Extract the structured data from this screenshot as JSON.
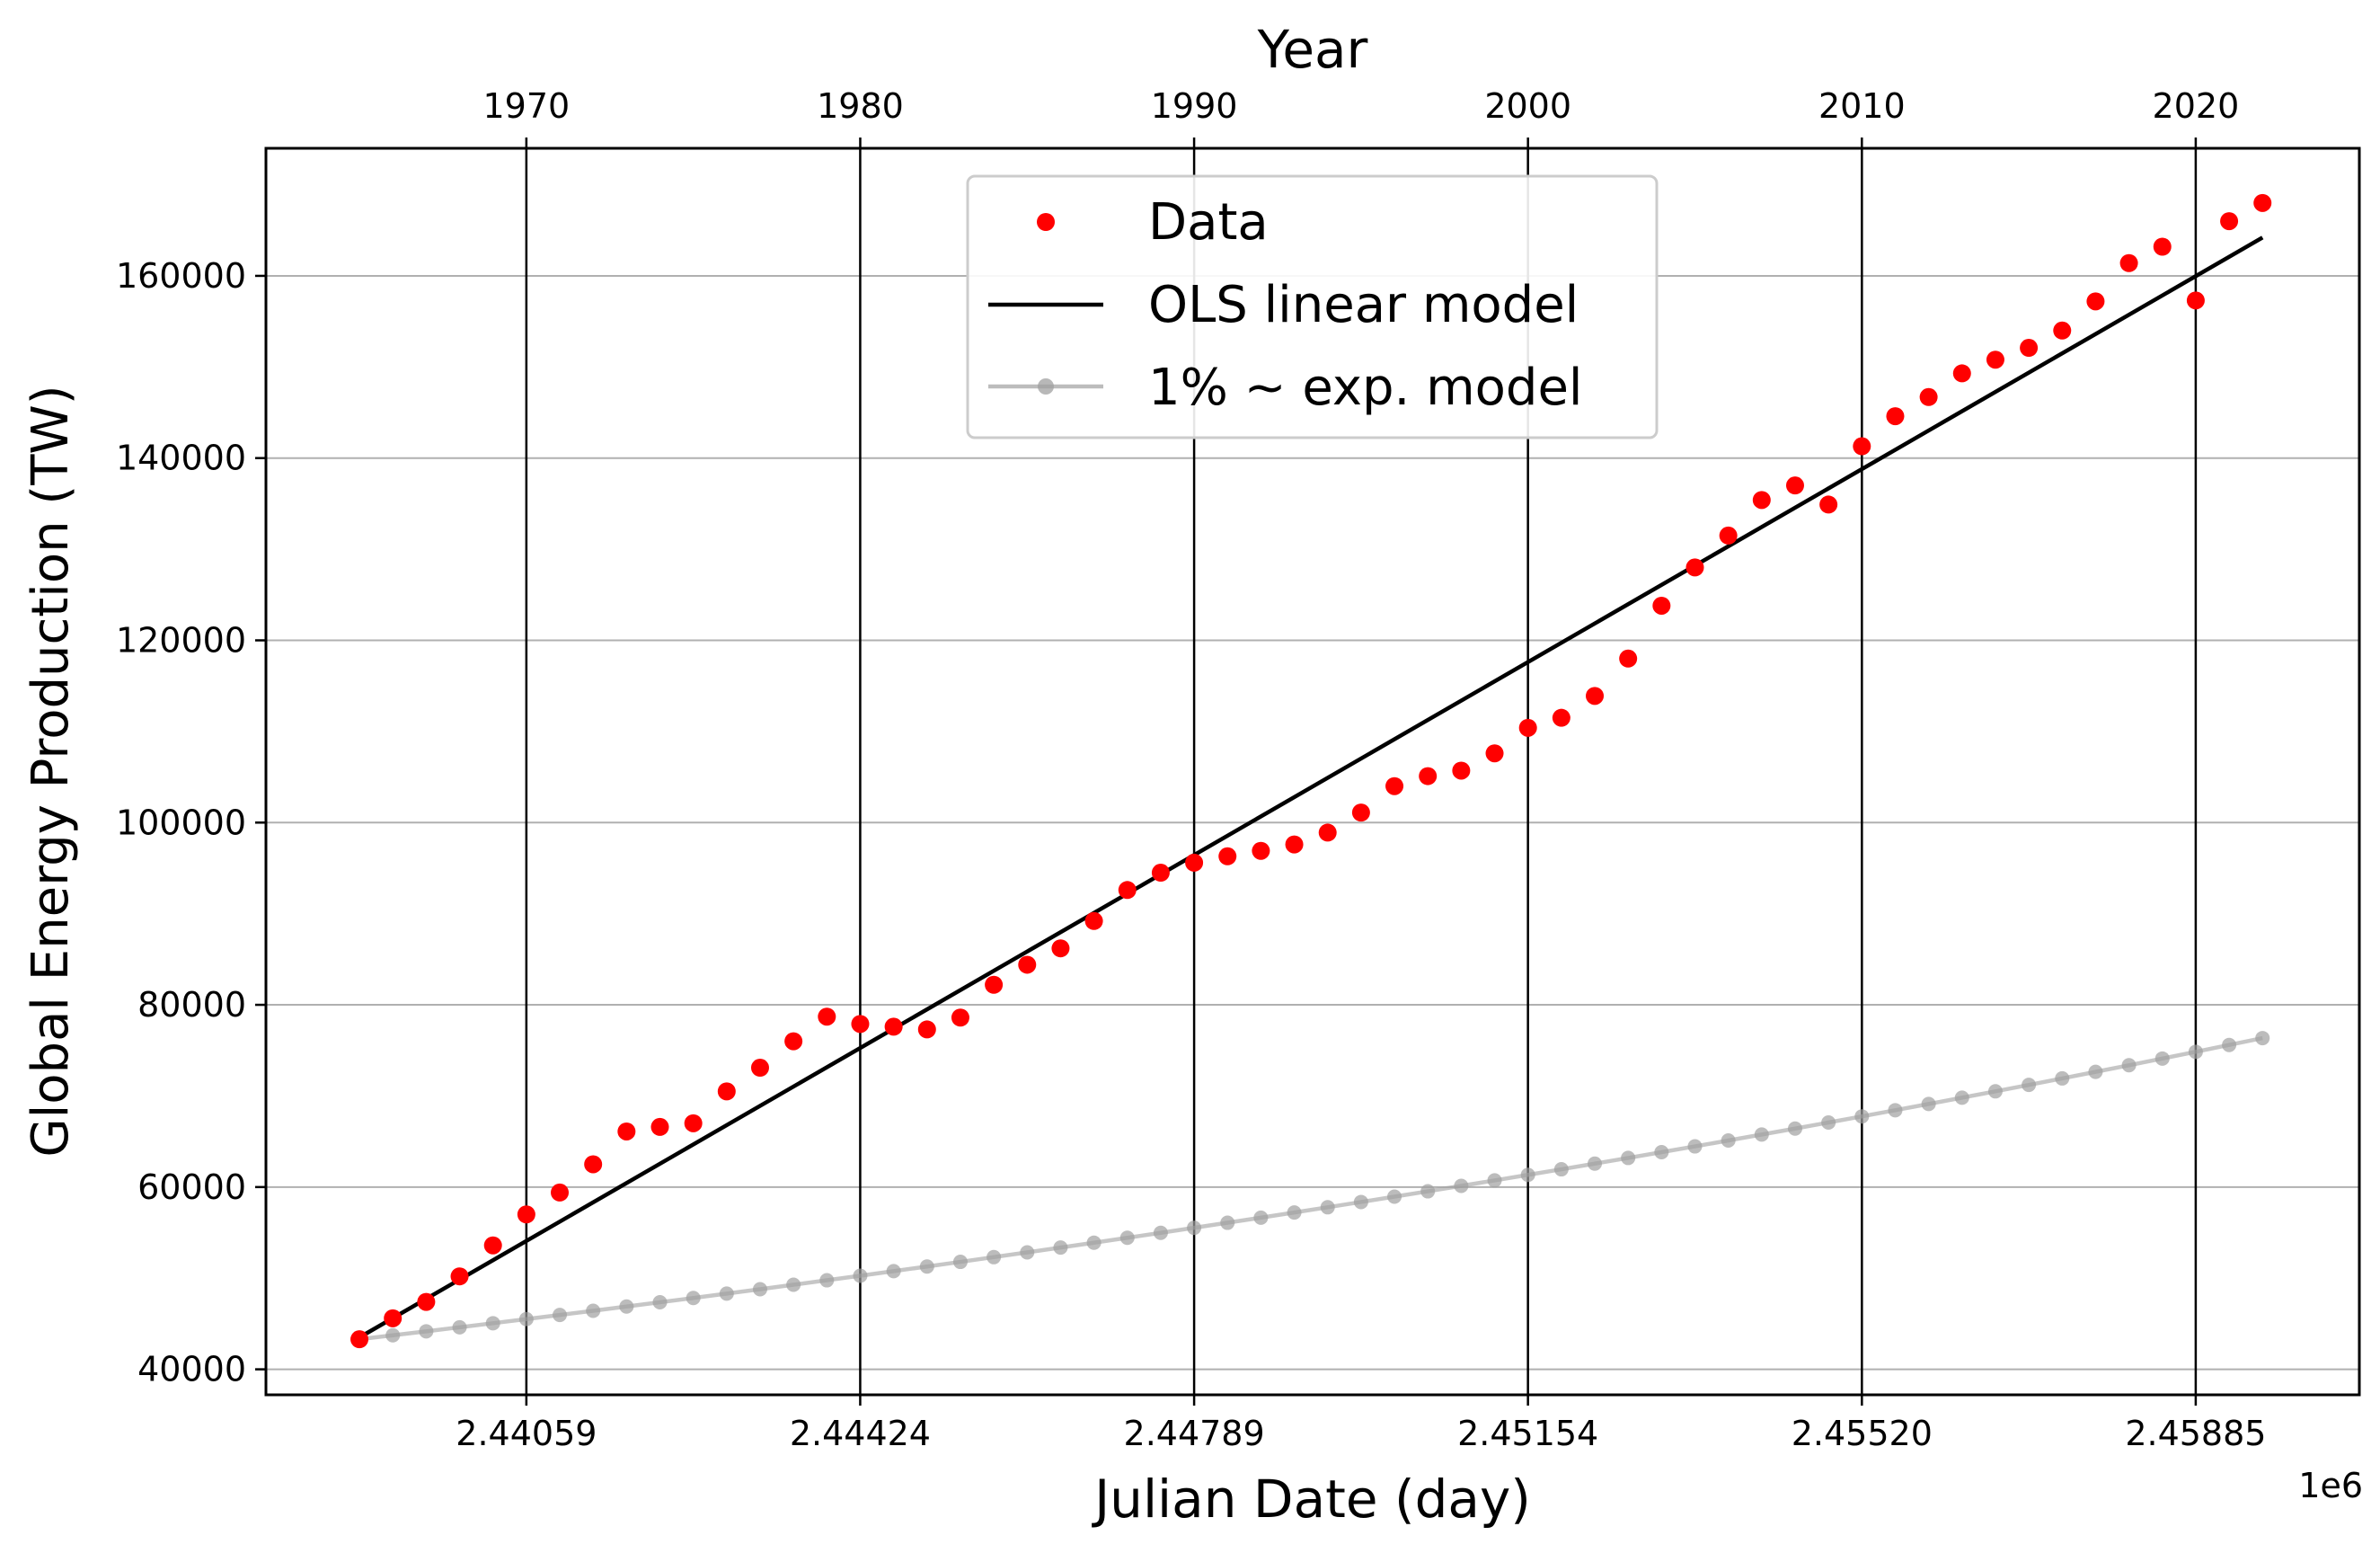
{
  "chart_data": {
    "type": "scatter",
    "title": "",
    "xlabel": "Julian Date (day)",
    "ylabel": "Global Energy Production (TW)",
    "x_offset_label": "1e6",
    "secondary_x": {
      "label": "Year",
      "ticks": [
        {
          "value": 1970,
          "label": "1970"
        },
        {
          "value": 1980,
          "label": "1980"
        },
        {
          "value": 1990,
          "label": "1990"
        },
        {
          "value": 2000,
          "label": "2000"
        },
        {
          "value": 2010,
          "label": "2010"
        },
        {
          "value": 2020,
          "label": "2020"
        }
      ]
    },
    "x_ticks": [
      {
        "value": 2440587.5,
        "label": "2.44059"
      },
      {
        "value": 2444239.5,
        "label": "2.44424"
      },
      {
        "value": 2447892.5,
        "label": "2.44789"
      },
      {
        "value": 2451544.5,
        "label": "2.45154"
      },
      {
        "value": 2455197.5,
        "label": "2.45520"
      },
      {
        "value": 2458849.5,
        "label": "2.45885"
      }
    ],
    "y_ticks": [
      {
        "value": 40000,
        "label": "40000"
      },
      {
        "value": 60000,
        "label": "60000"
      },
      {
        "value": 80000,
        "label": "80000"
      },
      {
        "value": 100000,
        "label": "100000"
      },
      {
        "value": 120000,
        "label": "120000"
      },
      {
        "value": 140000,
        "label": "140000"
      },
      {
        "value": 160000,
        "label": "160000"
      }
    ],
    "xlim_year": [
      1962.2,
      2024.9
    ],
    "ylim": [
      37200,
      174000
    ],
    "grid": {
      "horizontal": "light gray",
      "vertical": "black at year ticks"
    },
    "legend_position": "top-center",
    "series": [
      {
        "name": "Data",
        "style": "markers",
        "color": "#ff0000",
        "x_year": [
          1965,
          1966,
          1967,
          1968,
          1969,
          1970,
          1971,
          1972,
          1973,
          1974,
          1975,
          1976,
          1977,
          1978,
          1979,
          1980,
          1981,
          1982,
          1983,
          1984,
          1985,
          1986,
          1987,
          1988,
          1989,
          1990,
          1991,
          1992,
          1993,
          1994,
          1995,
          1996,
          1997,
          1998,
          1999,
          2000,
          2001,
          2002,
          2003,
          2004,
          2005,
          2006,
          2007,
          2008,
          2009,
          2010,
          2011,
          2012,
          2013,
          2014,
          2015,
          2016,
          2017,
          2018,
          2019,
          2020,
          2021,
          2022
        ],
        "y": [
          43300,
          45600,
          47400,
          50200,
          53600,
          57000,
          59400,
          62500,
          66100,
          66600,
          67000,
          70500,
          73100,
          76000,
          78700,
          77900,
          77600,
          77300,
          78600,
          82200,
          84400,
          86200,
          89200,
          92600,
          94500,
          95600,
          96300,
          96900,
          97600,
          98900,
          101100,
          104000,
          105100,
          105700,
          107600,
          110400,
          111500,
          113900,
          118000,
          123800,
          128000,
          131500,
          135400,
          137000,
          134900,
          141300,
          144600,
          146700,
          149300,
          150800,
          152100,
          154000,
          157200,
          161400,
          163200,
          157300,
          166000,
          168000
        ]
      },
      {
        "name": "OLS linear model",
        "style": "line",
        "color": "#000000",
        "x_year": [
          1965,
          2022
        ],
        "y": [
          43500,
          164200
        ]
      },
      {
        "name": "1% ~ exp. model",
        "style": "line-markers",
        "color": "#a0a0a0",
        "start_year": 1965,
        "end_year": 2022,
        "start_value": 43300,
        "annual_growth": 0.01
      }
    ]
  }
}
